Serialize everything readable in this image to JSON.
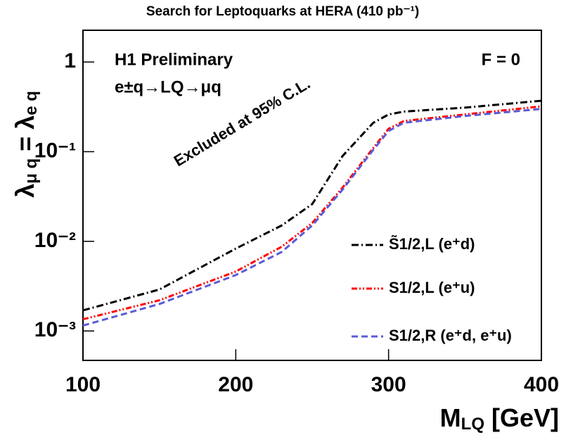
{
  "chart_data": {
    "type": "line",
    "title": "Search for Leptoquarks at HERA (410 pb⁻¹)",
    "x_label_parts": [
      "M",
      "LQ",
      " [GeV]"
    ],
    "y_label_parts": [
      "λ",
      "μ q",
      " = λ",
      "e q"
    ],
    "annotations": [
      "H1 Preliminary",
      "e±q→LQ→μq",
      "F = 0",
      "Excluded at 95% C.L."
    ],
    "x": [
      100,
      150,
      200,
      230,
      250,
      270,
      290,
      300,
      310,
      350,
      400
    ],
    "series": [
      {
        "name": "S̃1/2,L (e⁺d)",
        "color": "#000000",
        "dash": "dashdot",
        "values": [
          0.0017,
          0.0029,
          0.0083,
          0.015,
          0.026,
          0.09,
          0.21,
          0.26,
          0.28,
          0.31,
          0.37
        ]
      },
      {
        "name": "S1/2,L (e⁺u)",
        "color": "#ff0000",
        "dash": "dashdotdot",
        "values": [
          0.00135,
          0.0022,
          0.0046,
          0.0087,
          0.016,
          0.04,
          0.11,
          0.18,
          0.22,
          0.26,
          0.32
        ]
      },
      {
        "name": "S1/2,R (e⁺d, e⁺u)",
        "color": "#5b5bd6",
        "dash": "dashed",
        "values": [
          0.00115,
          0.002,
          0.0042,
          0.0076,
          0.015,
          0.038,
          0.105,
          0.17,
          0.21,
          0.25,
          0.3
        ]
      }
    ],
    "xlim": [
      100,
      400
    ],
    "xticks": [
      100,
      200,
      300,
      400
    ],
    "ylim": [
      0.00047,
      2.26
    ],
    "yticks": [
      {
        "value": 0.001,
        "label": "10⁻³"
      },
      {
        "value": 0.01,
        "label": "10⁻²"
      },
      {
        "value": 0.1,
        "label": "10⁻¹"
      },
      1
    ],
    "log_y": true,
    "grid": false,
    "legend": "lower right"
  }
}
